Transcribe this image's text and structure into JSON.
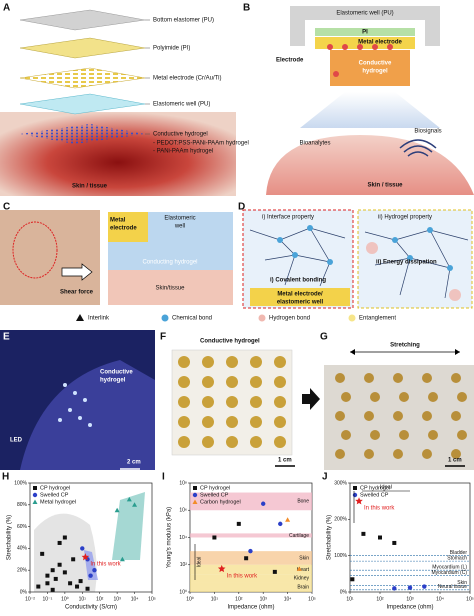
{
  "panels": {
    "A": {
      "label": "A",
      "layers": [
        "Bottom elastomer (PU)",
        "Polyimide (PI)",
        "Metal electrode (Cr/Au/Ti)",
        "Elastomeric well (PU)",
        "Conductive hydrogel"
      ],
      "hydrogel_types": [
        "- PEDOT:PSS-PANi-PAAm  hydrogel",
        "- PANi-PAAm  hydrogel"
      ],
      "tissue": "Skin / tissue"
    },
    "B": {
      "label": "B",
      "well": "Elastomeric well (PU)",
      "pi": "PI",
      "metal": "Metal electrode",
      "electrode": "Electrode",
      "hydrogel": [
        "Conductive",
        "hydrogel"
      ],
      "signals": [
        "Bioanalytes",
        "Biosignals"
      ],
      "tissue": "Skin / tissue"
    },
    "C": {
      "label": "C",
      "metal": [
        "Metal",
        "electrode"
      ],
      "well": [
        "Elastomeric",
        "well"
      ],
      "hydrogel": "Conducting hydrogel",
      "tissue": "Skin/tissue",
      "force": "Shear force"
    },
    "D": {
      "label": "D",
      "interface": "i) Interface property",
      "hydrogel_property": "ii) Hydrogel property",
      "covalent": "i) Covalent bonding",
      "substrate": [
        "Metal electrode/",
        "elastomeric well"
      ],
      "dissipation": "ii) Energy dissipation"
    },
    "legend": [
      "Interlink",
      "Chemical bond",
      "Hydrogen bond",
      "Entanglement"
    ],
    "E": {
      "label": "E",
      "hydrogel": [
        "Conductive",
        "hydrogel"
      ],
      "led": "LED",
      "scale": "2 cm"
    },
    "F": {
      "label": "F",
      "hydrogel": "Conductive hydrogel",
      "scale": "1 cm"
    },
    "G": {
      "label": "G",
      "stretching": "Stretching",
      "scale": "1 cm"
    }
  },
  "chart_data": [
    {
      "type": "scatter",
      "label": "H",
      "xlabel": "Conductivity (S/cm)",
      "ylabel": "Stretchability (%)",
      "xscale": "log",
      "legend": "upper left",
      "xlim": [
        0.01,
        100000
      ],
      "ylim": [
        0,
        100
      ],
      "xticks": [
        {
          "value": 0.01,
          "label": "10⁻²"
        },
        {
          "value": 0.1,
          "label": "10⁻¹"
        },
        {
          "value": 1,
          "label": "10⁰"
        },
        {
          "value": 10,
          "label": "10¹"
        },
        {
          "value": 100,
          "label": "10²"
        },
        {
          "value": 1000,
          "label": "10³"
        },
        {
          "value": 10000,
          "label": "10⁴"
        },
        {
          "value": 100000,
          "label": "10⁵"
        }
      ],
      "yticks": [
        {
          "value": 0,
          "label": "0%"
        },
        {
          "value": 20,
          "label": "20%"
        },
        {
          "value": 40,
          "label": "40%"
        },
        {
          "value": 60,
          "label": "60%"
        },
        {
          "value": 80,
          "label": "80%"
        },
        {
          "value": 100,
          "label": "100%"
        }
      ],
      "series": [
        {
          "name": "CP hydrogel",
          "color": "#111111",
          "marker": "square",
          "x": [
            0.03,
            0.05,
            0.1,
            0.1,
            0.2,
            0.2,
            0.3,
            0.5,
            0.5,
            1,
            1,
            2,
            3,
            5,
            8,
            20
          ],
          "values": [
            5,
            35,
            15,
            8,
            20,
            2,
            12,
            25,
            45,
            18,
            50,
            8,
            30,
            5,
            10,
            3
          ]
        },
        {
          "name": "Swelled CP",
          "color": "#2b3fc8",
          "marker": "circle",
          "x": [
            10,
            20,
            30,
            50
          ],
          "values": [
            40,
            30,
            15,
            20
          ]
        },
        {
          "name": "Metal hydrogel",
          "color": "#2a9d8f",
          "marker": "triangle",
          "x": [
            1000,
            2000,
            5000,
            10000
          ],
          "values": [
            75,
            30,
            85,
            80
          ]
        }
      ],
      "highlight": {
        "label": "In this work",
        "x": 15,
        "y": 32
      }
    },
    {
      "type": "scatter",
      "label": "I",
      "xlabel": "Impedance (ohm)",
      "ylabel": "Young's modulus (kPa)",
      "xscale": "log",
      "yscale": "log",
      "legend": "upper left",
      "ideal": "Ideal",
      "xlim": [
        1,
        100000
      ],
      "ylim": [
        1,
        100000000
      ],
      "xticks": [
        {
          "value": 1,
          "label": "10⁰"
        },
        {
          "value": 10,
          "label": "10¹"
        },
        {
          "value": 100,
          "label": "10²"
        },
        {
          "value": 1000,
          "label": "10³"
        },
        {
          "value": 10000,
          "label": "10⁴"
        },
        {
          "value": 100000,
          "label": "10⁵"
        }
      ],
      "yticks": [
        {
          "value": 1,
          "label": "10⁰"
        },
        {
          "value": 100,
          "label": "10²"
        },
        {
          "value": 10000,
          "label": "10⁴"
        },
        {
          "value": 1000000,
          "label": "10⁶"
        },
        {
          "value": 100000000,
          "label": "10⁸"
        }
      ],
      "bands": [
        {
          "name": "Bone",
          "range": [
            1000000,
            20000000
          ],
          "color": "#f2b5c4"
        },
        {
          "name": "Cartilage",
          "range": [
            10000,
            20000
          ],
          "color": "#f2b5c4"
        },
        {
          "name": "Skin",
          "range": [
            100,
            1000
          ],
          "color": "#f6c58f"
        },
        {
          "name": "Heart",
          "range": [
            20,
            100
          ],
          "color": "#f6df8c"
        },
        {
          "name": "Kidney",
          "range": [
            5,
            20
          ],
          "color": "#f6df8c"
        },
        {
          "name": "Brain",
          "range": [
            1,
            5
          ],
          "color": "#f6df8c"
        }
      ],
      "series": [
        {
          "name": "CP hydrogel",
          "color": "#111111",
          "marker": "square",
          "x": [
            10,
            100,
            200,
            3000
          ],
          "values": [
            10000,
            100000,
            300,
            30
          ]
        },
        {
          "name": "Swelled CP",
          "color": "#2b3fc8",
          "marker": "circle",
          "x": [
            300,
            1000,
            5000
          ],
          "values": [
            1000,
            3000000,
            100000
          ]
        },
        {
          "name": "Carbon hydrogel",
          "color": "#f28c28",
          "marker": "triangle",
          "x": [
            10000,
            30000
          ],
          "values": [
            200000,
            50
          ]
        }
      ],
      "highlight": {
        "label": "In this work",
        "x": 20,
        "y": 50
      }
    },
    {
      "type": "scatter",
      "label": "J",
      "xlabel": "Impedance (ohm)",
      "ylabel": "Stretchability (%)",
      "xscale": "log",
      "legend": "upper left",
      "ideal": "Ideal",
      "xlim": [
        10,
        100000
      ],
      "ylim": [
        0,
        300
      ],
      "xticks": [
        {
          "value": 10,
          "label": "10¹"
        },
        {
          "value": 100,
          "label": "10²"
        },
        {
          "value": 1000,
          "label": "10³"
        },
        {
          "value": 10000,
          "label": "10⁴"
        },
        {
          "value": 100000,
          "label": "10⁵"
        }
      ],
      "yticks": [
        {
          "value": 0,
          "label": "0%"
        },
        {
          "value": 100,
          "label": "100%"
        },
        {
          "value": 200,
          "label": "200%"
        },
        {
          "value": 300,
          "label": "300%"
        }
      ],
      "reference_lines": [
        {
          "name": "Bladder",
          "value": 100
        },
        {
          "name": "Stomach",
          "value": 85
        },
        {
          "name": "Myocardium (L)",
          "value": 60
        },
        {
          "name": "Myocardium (C)",
          "value": 45
        },
        {
          "name": "Skin",
          "value": 18
        },
        {
          "name": "Neural tissue",
          "value": 6
        }
      ],
      "series": [
        {
          "name": "CP hydrogel",
          "color": "#111111",
          "marker": "square",
          "x": [
            12,
            28,
            100,
            300
          ],
          "values": [
            35,
            160,
            150,
            135
          ]
        },
        {
          "name": "Swelled CP",
          "color": "#2b3fc8",
          "marker": "circle",
          "x": [
            300,
            1000,
            3000
          ],
          "values": [
            10,
            12,
            15
          ]
        }
      ],
      "highlight": {
        "label": "In this work",
        "x": 20,
        "y": 250
      }
    }
  ]
}
